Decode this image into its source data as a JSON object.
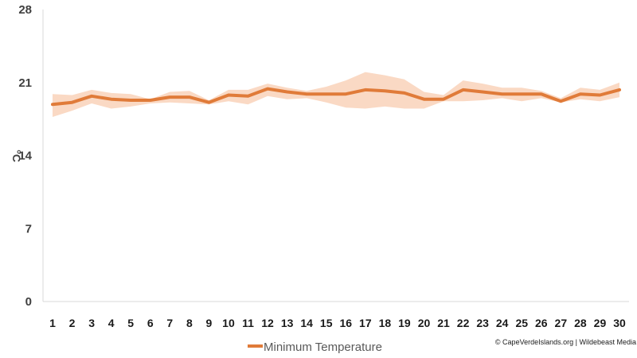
{
  "chart_data": {
    "type": "line",
    "title": "",
    "xlabel": "",
    "ylabel": "°C",
    "ylim": [
      0,
      28
    ],
    "yticks": [
      0,
      7,
      14,
      21,
      28
    ],
    "x": [
      1,
      2,
      3,
      4,
      5,
      6,
      7,
      8,
      9,
      10,
      11,
      12,
      13,
      14,
      15,
      16,
      17,
      18,
      19,
      20,
      21,
      22,
      23,
      24,
      25,
      26,
      27,
      28,
      29,
      30
    ],
    "series": [
      {
        "name": "Minimum Temperature",
        "values": [
          18.9,
          19.1,
          19.7,
          19.4,
          19.3,
          19.3,
          19.6,
          19.6,
          19.1,
          19.8,
          19.7,
          20.4,
          20.1,
          19.9,
          19.9,
          19.9,
          20.3,
          20.2,
          20.0,
          19.4,
          19.4,
          20.3,
          20.1,
          19.9,
          19.9,
          19.9,
          19.2,
          19.9,
          19.8,
          20.3
        ],
        "band_low": [
          17.7,
          18.3,
          19.0,
          18.5,
          18.7,
          19.0,
          19.1,
          19.0,
          18.9,
          19.2,
          18.9,
          19.7,
          19.4,
          19.5,
          19.1,
          18.6,
          18.5,
          18.7,
          18.5,
          18.5,
          19.2,
          19.2,
          19.3,
          19.5,
          19.2,
          19.5,
          19.1,
          19.4,
          19.2,
          19.6
        ],
        "band_high": [
          19.9,
          19.8,
          20.3,
          20.0,
          19.9,
          19.4,
          20.1,
          20.2,
          19.3,
          20.3,
          20.3,
          20.9,
          20.5,
          20.2,
          20.6,
          21.2,
          22.0,
          21.7,
          21.3,
          20.1,
          19.8,
          21.2,
          20.9,
          20.5,
          20.5,
          20.2,
          19.5,
          20.5,
          20.3,
          21.0
        ],
        "color": "#e07b39",
        "band_color": "#fad9c4"
      }
    ],
    "grid": false,
    "legend_position": "bottom-left"
  },
  "credit": "© CapeVerdeIslands.org | Wildebeast Media"
}
